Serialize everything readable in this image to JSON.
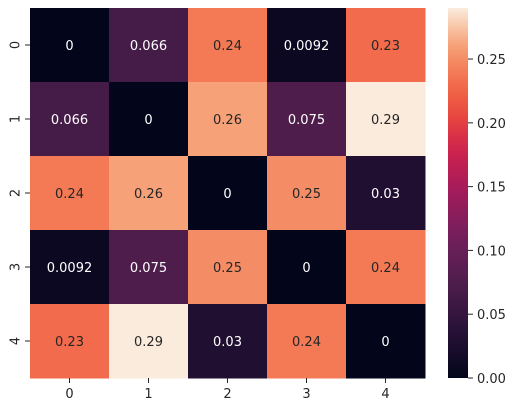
{
  "chart_data": {
    "type": "heatmap",
    "title": "",
    "xlabel": "",
    "ylabel": "",
    "x_categories": [
      "0",
      "1",
      "2",
      "3",
      "4"
    ],
    "y_categories": [
      "0",
      "1",
      "2",
      "3",
      "4"
    ],
    "values": [
      [
        0,
        0.066,
        0.24,
        0.0092,
        0.23
      ],
      [
        0.066,
        0,
        0.26,
        0.075,
        0.29
      ],
      [
        0.24,
        0.26,
        0,
        0.25,
        0.03
      ],
      [
        0.0092,
        0.075,
        0.25,
        0,
        0.24
      ],
      [
        0.23,
        0.29,
        0.03,
        0.24,
        0
      ]
    ],
    "cell_labels": [
      [
        "0",
        "0.066",
        "0.24",
        "0.0092",
        "0.23"
      ],
      [
        "0.066",
        "0",
        "0.26",
        "0.075",
        "0.29"
      ],
      [
        "0.24",
        "0.26",
        "0",
        "0.25",
        "0.03"
      ],
      [
        "0.0092",
        "0.075",
        "0.25",
        "0",
        "0.24"
      ],
      [
        "0.23",
        "0.29",
        "0.03",
        "0.24",
        "0"
      ]
    ],
    "colorbar": {
      "range": [
        0,
        0.29
      ],
      "ticks": [
        0.0,
        0.05,
        0.1,
        0.15,
        0.2,
        0.25
      ],
      "tick_labels": [
        "0.00",
        "0.05",
        "0.10",
        "0.15",
        "0.20",
        "0.25"
      ],
      "colormap": "rocket"
    },
    "grid": false,
    "legend": "colorbar-right"
  }
}
